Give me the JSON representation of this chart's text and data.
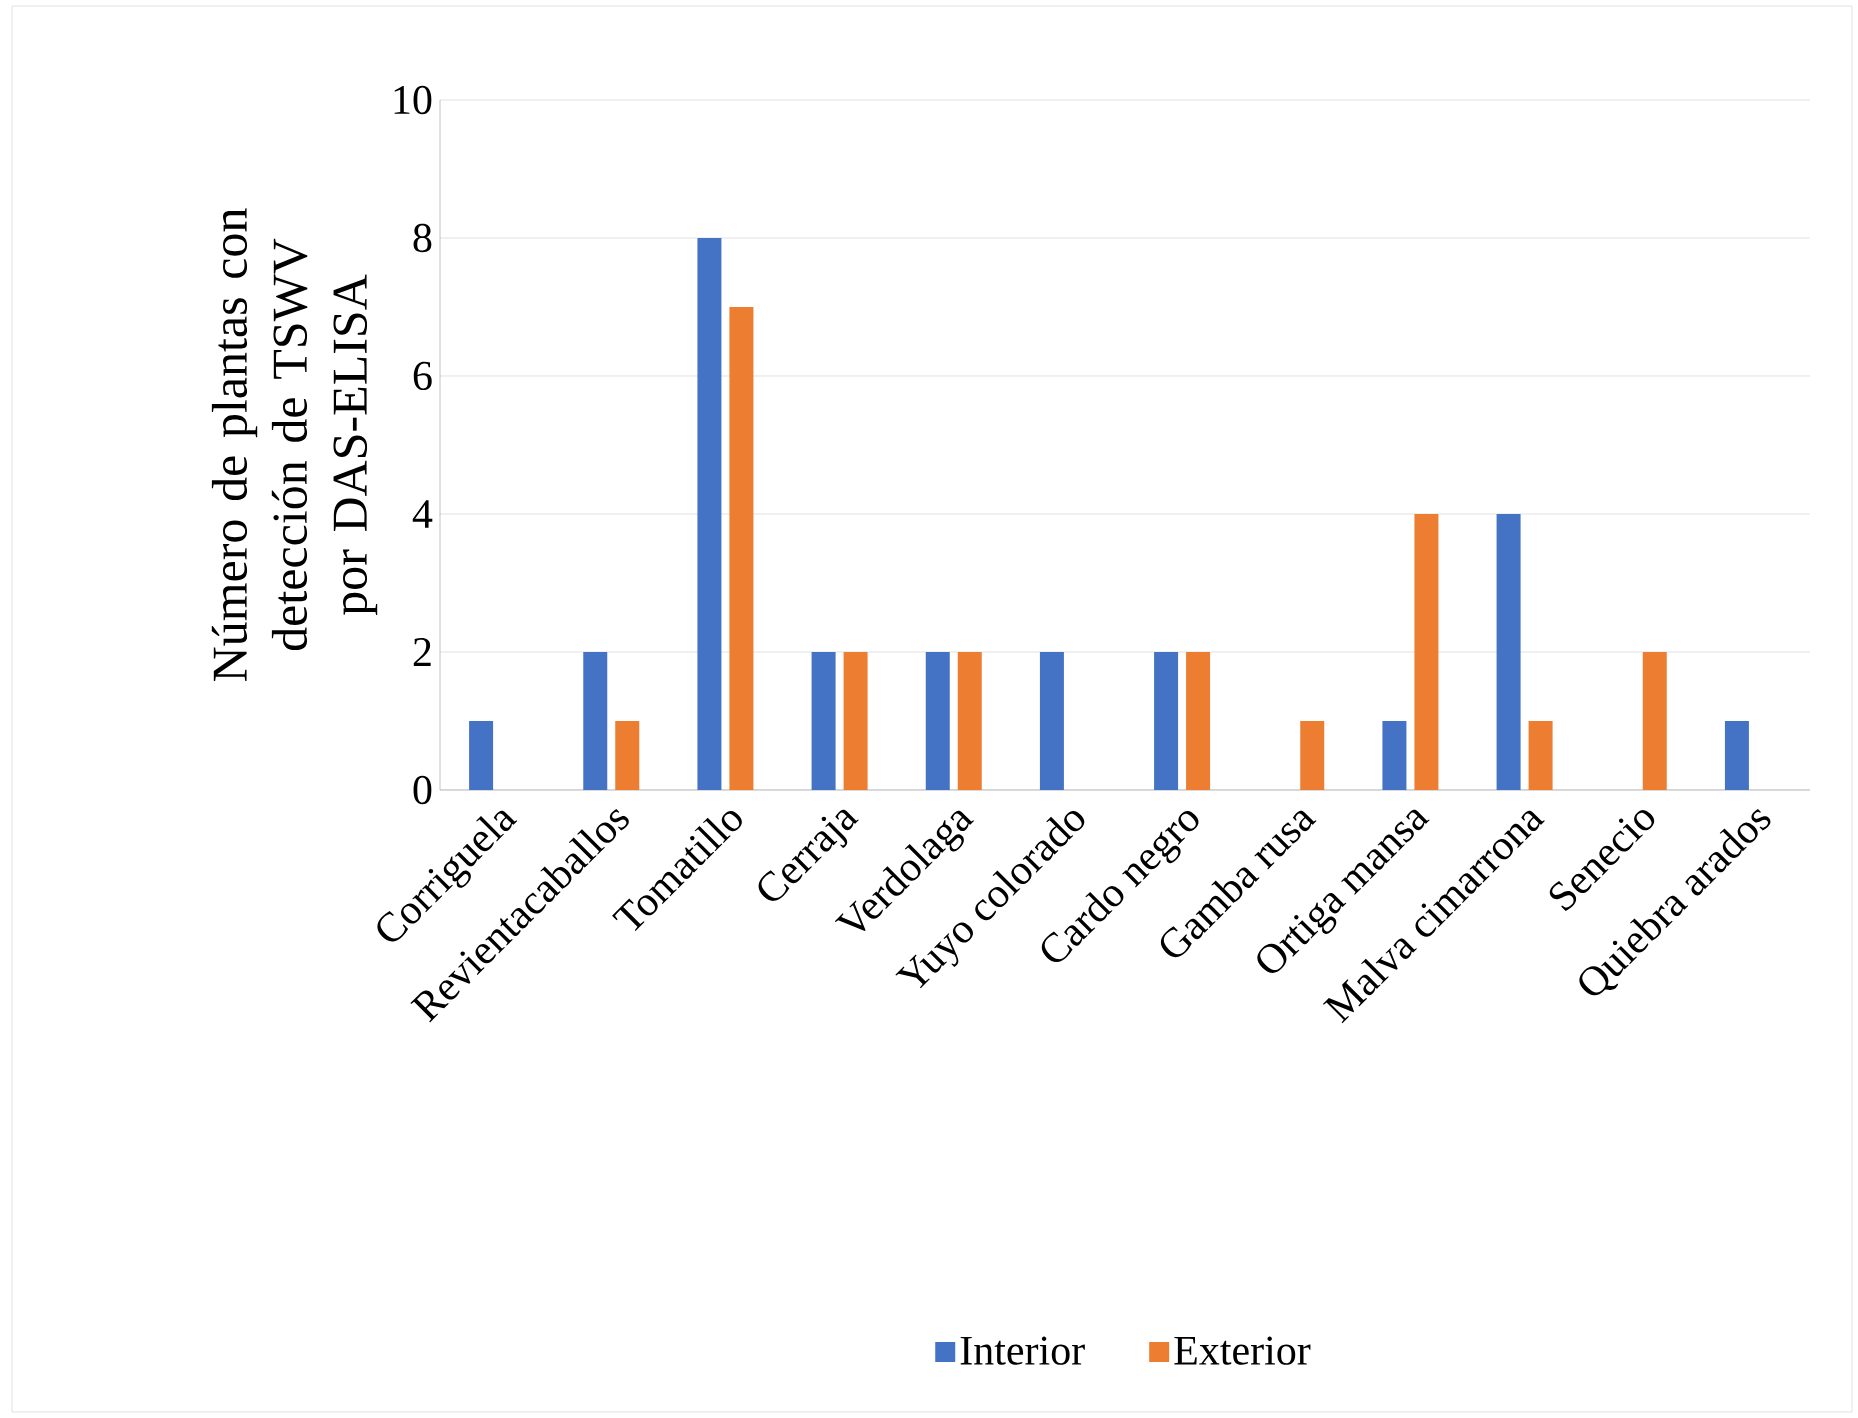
{
  "chart_data": {
    "type": "bar",
    "ylabel": "Número de plantas con detección de TSWV por DAS-ELISA",
    "categories": [
      "Corriguela",
      "Revientacaballos",
      "Tomatillo",
      "Cerraja",
      "Verdolaga",
      "Yuyo colorado",
      "Cardo negro",
      "Gamba rusa",
      "Ortiga mansa",
      "Malva cimarrona",
      "Senecio",
      "Quiebra arados"
    ],
    "series": [
      {
        "name": "Interior",
        "color": "#4472c4",
        "values": [
          1,
          2,
          8,
          2,
          2,
          2,
          2,
          0,
          1,
          4,
          0,
          1
        ]
      },
      {
        "name": "Exterior",
        "color": "#ed7d31",
        "values": [
          0,
          1,
          7,
          2,
          2,
          0,
          2,
          1,
          4,
          1,
          2,
          0
        ]
      }
    ],
    "ylim": [
      0,
      10
    ],
    "yticks": [
      0,
      2,
      4,
      6,
      8,
      10
    ],
    "grid": "y",
    "legend": "bottom"
  }
}
